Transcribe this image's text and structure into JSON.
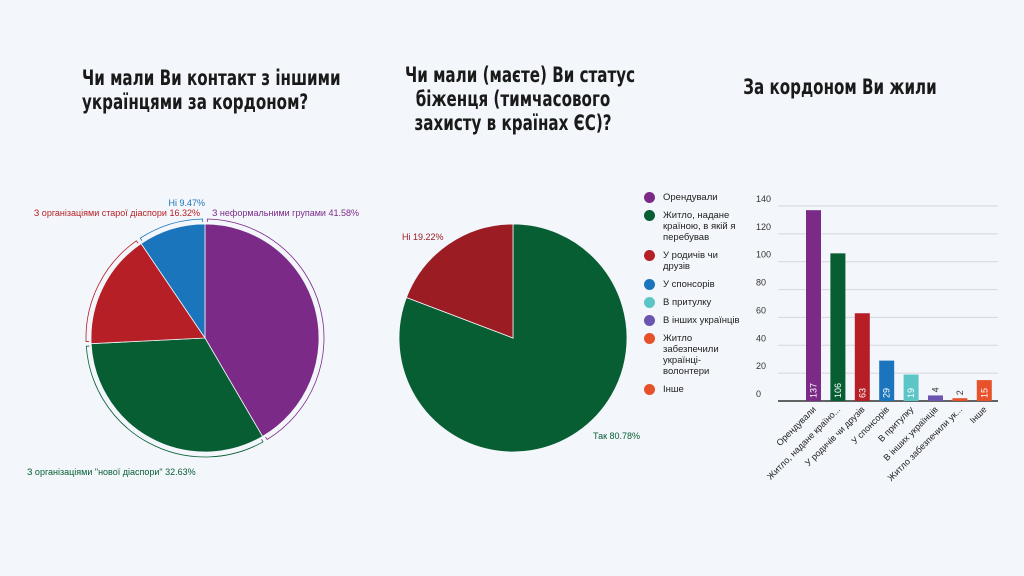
{
  "chart_data": [
    {
      "type": "pie",
      "title": [
        "Чи мали Ви контакт з іншими",
        "українцями за кордоном?"
      ],
      "slices": [
        {
          "label": "З неформальними групами",
          "value": 41.58,
          "color": "#7b2a88"
        },
        {
          "label": "З організаціями \"нової діаспори\"",
          "value": 32.63,
          "color": "#075e33"
        },
        {
          "label": "З організаціями старої діаспори",
          "value": 16.32,
          "color": "#b51f25"
        },
        {
          "label": "Ні",
          "value": 9.47,
          "color": "#1b75bc"
        }
      ],
      "display_labels": [
        "З неформальними групами 41.58%",
        "З організаціями \"нової діаспори\" 32.63%",
        "З організаціями старої діаспори 16.32%",
        "Ні 9.47%"
      ]
    },
    {
      "type": "pie",
      "title": [
        "Чи мали (маєте) Ви статус",
        "біженця (тимчасового",
        "захисту в країнах ЄС)?"
      ],
      "slices": [
        {
          "label": "Так",
          "value": 80.78,
          "color": "#075e33"
        },
        {
          "label": "Ні",
          "value": 19.22,
          "color": "#9b1c22"
        }
      ],
      "display_labels": [
        "Так 80.78%",
        "Ні 19.22%"
      ]
    },
    {
      "type": "bar",
      "title": [
        "За кордоном Ви жили"
      ],
      "categories": [
        "Орендували",
        "Житло, надане країною, в якій я перебував",
        "У родичів чи друзів",
        "У спонсорів",
        "В притулку",
        "В інших українців",
        "Житло забезпечили українці-волонтери",
        "Інше"
      ],
      "tick_labels": [
        "Орендували",
        "Житло, надане країно...",
        "У родичів чи друзів",
        "У спонсорів",
        "В притулку",
        "В інших українців",
        "Житло забезпечили ук...",
        "Інше"
      ],
      "legend_labels": [
        [
          "Орендували"
        ],
        [
          "Житло, надане",
          "країною, в якій я",
          "перебував"
        ],
        [
          "У родичів чи",
          "друзів"
        ],
        [
          "У спонсорів"
        ],
        [
          "В притулку"
        ],
        [
          "В інших українців"
        ],
        [
          "Житло",
          "забезпечили",
          "українці-",
          "волонтери"
        ],
        [
          "Інше"
        ]
      ],
      "values": [
        137,
        106,
        63,
        29,
        19,
        4,
        2,
        15
      ],
      "value_labels": [
        "137",
        "106",
        "63",
        "29",
        "19",
        "4",
        "2",
        "15"
      ],
      "colors": [
        "#7b2a88",
        "#075e33",
        "#b51f25",
        "#1b75bc",
        "#5cc6c6",
        "#6a55b0",
        "#e8522a",
        "#e8522a"
      ],
      "ylim": [
        0,
        140
      ],
      "yticks": [
        "0",
        "20",
        "40",
        "60",
        "80",
        "100",
        "120",
        "140"
      ],
      "grid": true,
      "legend_position": "left"
    }
  ]
}
